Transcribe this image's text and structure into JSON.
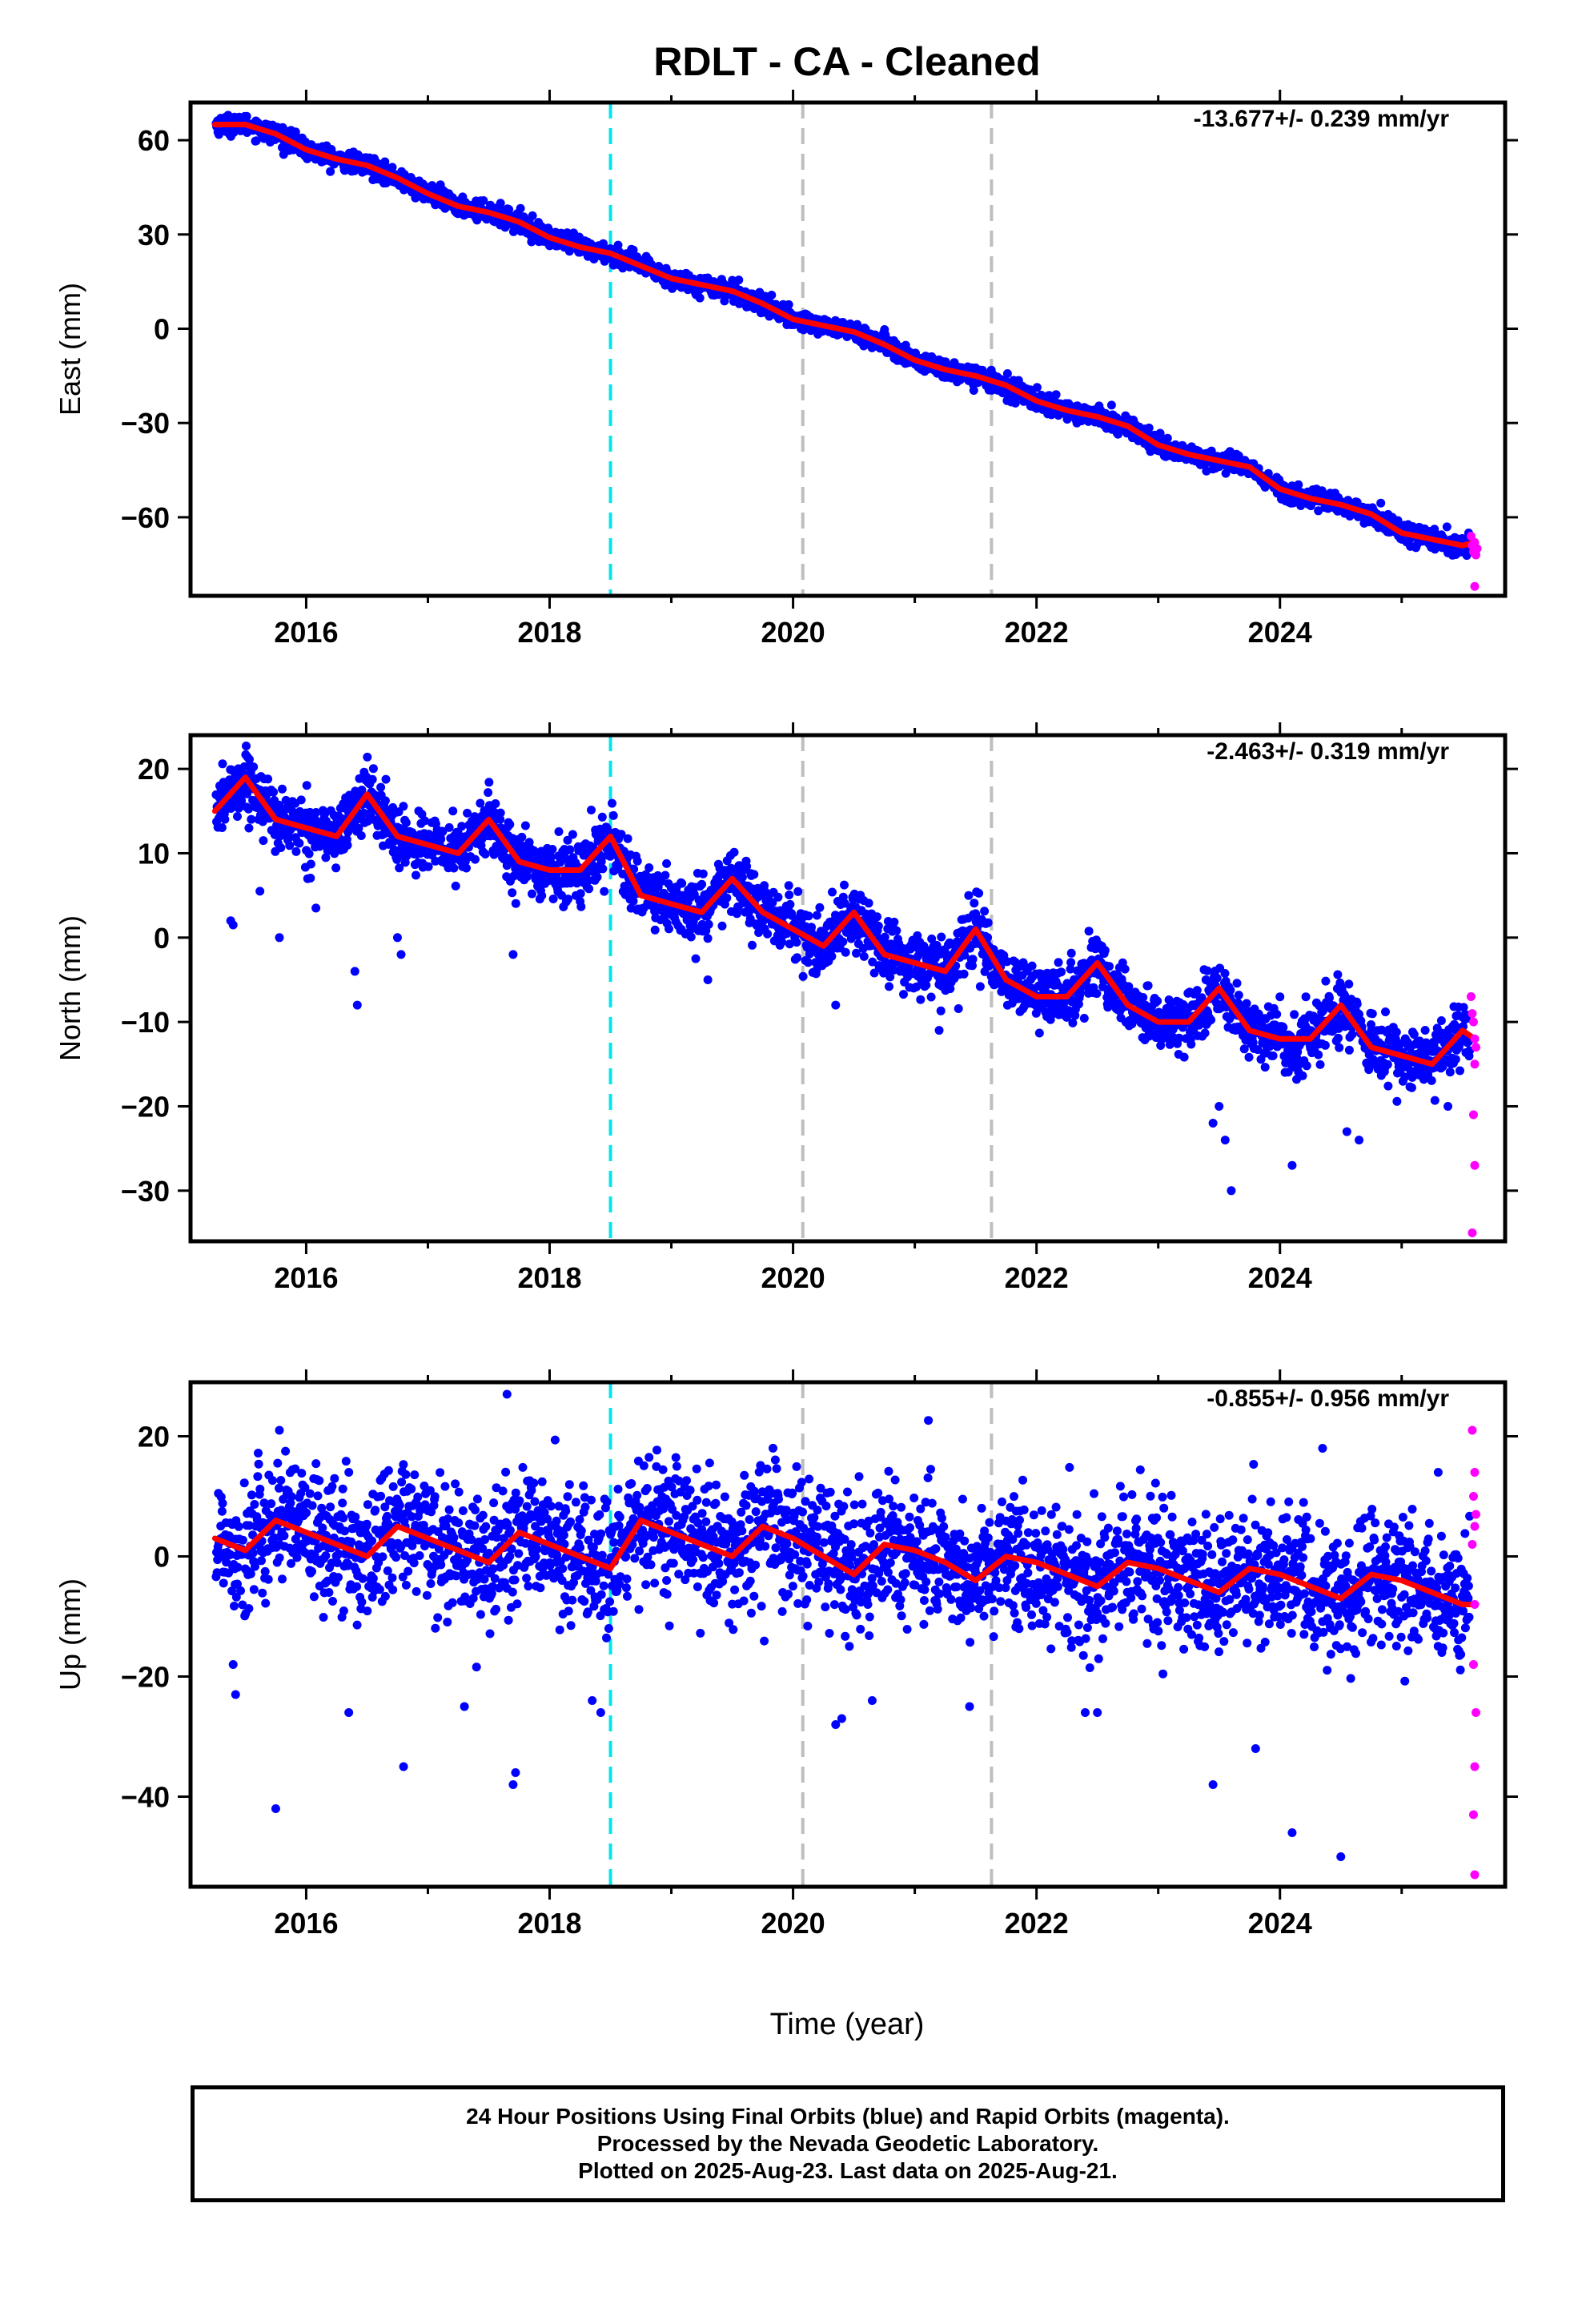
{
  "title": "RDLT  - CA - Cleaned",
  "xlabel": "Time (year)",
  "colors": {
    "final_points": "#0000ff",
    "rapid_points": "#ff00ff",
    "model_line": "#ff0000",
    "antenna_change_line": "#00e5ee",
    "event_line": "#bebebe"
  },
  "chart_data": [
    {
      "type": "scatter",
      "component": "East",
      "ylabel": "East (mm)",
      "rate_label": "-13.677+/- 0.239 mm/yr",
      "xlim": [
        2015.05,
        2025.85
      ],
      "ylim": [
        -85,
        72
      ],
      "yticks": [
        60,
        30,
        0,
        -30,
        -60
      ],
      "xticks": [
        2016,
        2018,
        2020,
        2022,
        2024
      ],
      "vertical_lines": [
        {
          "x": 2018.5,
          "kind": "cyan"
        },
        {
          "x": 2020.08,
          "kind": "gray"
        },
        {
          "x": 2021.63,
          "kind": "gray"
        }
      ],
      "model_line": {
        "x": [
          2015.25,
          2015.5,
          2015.75,
          2016.0,
          2016.25,
          2016.5,
          2016.75,
          2017.0,
          2017.25,
          2017.5,
          2017.75,
          2018.0,
          2018.25,
          2018.5,
          2018.75,
          2019.0,
          2019.25,
          2019.5,
          2019.75,
          2020.0,
          2020.25,
          2020.5,
          2020.75,
          2021.0,
          2021.25,
          2021.5,
          2021.75,
          2022.0,
          2022.25,
          2022.5,
          2022.75,
          2023.0,
          2023.25,
          2023.5,
          2023.75,
          2024.0,
          2024.25,
          2024.5,
          2024.75,
          2025.0,
          2025.25,
          2025.5,
          2025.6
        ],
        "y": [
          65,
          65,
          62,
          57,
          54,
          52,
          48,
          43,
          39,
          37,
          34,
          29,
          26,
          24,
          20,
          16,
          14,
          12,
          8,
          3,
          1,
          -1,
          -5,
          -10,
          -13,
          -15,
          -18,
          -23,
          -26,
          -28,
          -31,
          -37,
          -40,
          -42,
          -44,
          -51,
          -54,
          -56,
          -59,
          -65,
          -67,
          -69,
          -68
        ]
      },
      "rapid_points": {
        "x": [
          2025.57,
          2025.58,
          2025.59,
          2025.6,
          2025.61,
          2025.62,
          2025.6
        ],
        "y": [
          -66,
          -69,
          -71,
          -68,
          -72,
          -70,
          -82
        ]
      },
      "scatter_noise_mm": 1.5,
      "outliers": []
    },
    {
      "type": "scatter",
      "component": "North",
      "ylabel": "North (mm)",
      "rate_label": "-2.463+/- 0.319 mm/yr",
      "xlim": [
        2015.05,
        2025.85
      ],
      "ylim": [
        -36,
        24
      ],
      "yticks": [
        20,
        10,
        0,
        -10,
        -20,
        -30
      ],
      "xticks": [
        2016,
        2018,
        2020,
        2022,
        2024
      ],
      "vertical_lines": [
        {
          "x": 2018.5,
          "kind": "cyan"
        },
        {
          "x": 2020.08,
          "kind": "gray"
        },
        {
          "x": 2021.63,
          "kind": "gray"
        }
      ],
      "model_line": {
        "x": [
          2015.25,
          2015.5,
          2015.75,
          2016.0,
          2016.25,
          2016.5,
          2016.75,
          2017.0,
          2017.25,
          2017.5,
          2017.75,
          2018.0,
          2018.25,
          2018.5,
          2018.75,
          2019.0,
          2019.25,
          2019.5,
          2019.75,
          2020.0,
          2020.25,
          2020.5,
          2020.75,
          2021.0,
          2021.25,
          2021.5,
          2021.75,
          2022.0,
          2022.25,
          2022.5,
          2022.75,
          2023.0,
          2023.25,
          2023.5,
          2023.75,
          2024.0,
          2024.25,
          2024.5,
          2024.75,
          2025.0,
          2025.25,
          2025.5,
          2025.6
        ],
        "y": [
          15,
          19,
          14,
          13,
          12,
          17,
          12,
          11,
          10,
          14,
          9,
          8,
          8,
          12,
          5,
          4,
          3,
          7,
          3,
          1,
          -1,
          3,
          -2,
          -3,
          -4,
          1,
          -5,
          -7,
          -7,
          -3,
          -8,
          -10,
          -10,
          -6,
          -11,
          -12,
          -12,
          -8,
          -13,
          -14,
          -15,
          -11,
          -12
        ]
      },
      "rapid_points": {
        "x": [
          2025.57,
          2025.58,
          2025.59,
          2025.6,
          2025.61,
          2025.6,
          2025.59,
          2025.6,
          2025.58
        ],
        "y": [
          -7,
          -9,
          -10,
          -12,
          -13,
          -15,
          -21,
          -27,
          -35
        ]
      },
      "scatter_noise_mm": 1.8,
      "outliers": [
        {
          "x": 2015.38,
          "y": 2
        },
        {
          "x": 2015.4,
          "y": 1.5
        },
        {
          "x": 2015.62,
          "y": 5.5
        },
        {
          "x": 2015.78,
          "y": 0
        },
        {
          "x": 2016.08,
          "y": 3.5
        },
        {
          "x": 2016.4,
          "y": -4
        },
        {
          "x": 2016.42,
          "y": -8
        },
        {
          "x": 2016.75,
          "y": 0
        },
        {
          "x": 2016.78,
          "y": -2
        },
        {
          "x": 2017.7,
          "y": -2
        },
        {
          "x": 2019.3,
          "y": -5
        },
        {
          "x": 2020.35,
          "y": -8
        },
        {
          "x": 2021.2,
          "y": -11
        },
        {
          "x": 2023.45,
          "y": -22
        },
        {
          "x": 2023.5,
          "y": -20
        },
        {
          "x": 2023.55,
          "y": -24
        },
        {
          "x": 2023.6,
          "y": -30
        },
        {
          "x": 2024.1,
          "y": -27
        },
        {
          "x": 2024.55,
          "y": -23
        },
        {
          "x": 2024.65,
          "y": -24
        },
        {
          "x": 2025.38,
          "y": -20
        }
      ]
    },
    {
      "type": "scatter",
      "component": "Up",
      "ylabel": "Up (mm)",
      "rate_label": "-0.855+/- 0.956 mm/yr",
      "xlim": [
        2015.05,
        2025.85
      ],
      "ylim": [
        -55,
        29
      ],
      "yticks": [
        20,
        0,
        -20,
        -40
      ],
      "xticks": [
        2016,
        2018,
        2020,
        2022,
        2024
      ],
      "vertical_lines": [
        {
          "x": 2018.5,
          "kind": "cyan"
        },
        {
          "x": 2020.08,
          "kind": "gray"
        },
        {
          "x": 2021.63,
          "kind": "gray"
        }
      ],
      "model_line": {
        "x": [
          2015.25,
          2015.5,
          2015.75,
          2016.0,
          2016.25,
          2016.5,
          2016.75,
          2017.0,
          2017.25,
          2017.5,
          2017.75,
          2018.0,
          2018.25,
          2018.5,
          2018.75,
          2019.0,
          2019.25,
          2019.5,
          2019.75,
          2020.0,
          2020.25,
          2020.5,
          2020.75,
          2021.0,
          2021.25,
          2021.5,
          2021.75,
          2022.0,
          2022.25,
          2022.5,
          2022.75,
          2023.0,
          2023.25,
          2023.5,
          2023.75,
          2024.0,
          2024.25,
          2024.5,
          2024.75,
          2025.0,
          2025.25,
          2025.5,
          2025.6
        ],
        "y": [
          3,
          1,
          6,
          4,
          2,
          0,
          5,
          3,
          1,
          -1,
          4,
          2,
          0,
          -2,
          6,
          4,
          2,
          0,
          5,
          3,
          0,
          -3,
          2,
          1,
          -1,
          -4,
          0,
          -1,
          -3,
          -5,
          -1,
          -2,
          -4,
          -6,
          -2,
          -3,
          -5,
          -7,
          -3,
          -4,
          -6,
          -8,
          -8
        ]
      },
      "rapid_points": {
        "x": [
          2025.58,
          2025.6,
          2025.59,
          2025.61,
          2025.6,
          2025.58,
          2025.6,
          2025.59,
          2025.61,
          2025.6,
          2025.59,
          2025.6
        ],
        "y": [
          21,
          14,
          10,
          7,
          5,
          2,
          -8,
          -18,
          -26,
          -35,
          -43,
          -53
        ]
      },
      "scatter_noise_mm": 5.5,
      "outliers": [
        {
          "x": 2015.4,
          "y": -18
        },
        {
          "x": 2015.42,
          "y": -23
        },
        {
          "x": 2015.75,
          "y": -42
        },
        {
          "x": 2015.78,
          "y": 21
        },
        {
          "x": 2016.35,
          "y": -26
        },
        {
          "x": 2016.8,
          "y": -35
        },
        {
          "x": 2017.3,
          "y": -25
        },
        {
          "x": 2017.7,
          "y": -38
        },
        {
          "x": 2017.72,
          "y": -36
        },
        {
          "x": 2017.65,
          "y": 27
        },
        {
          "x": 2018.35,
          "y": -24
        },
        {
          "x": 2018.42,
          "y": -26
        },
        {
          "x": 2020.35,
          "y": -28
        },
        {
          "x": 2020.4,
          "y": -27
        },
        {
          "x": 2020.65,
          "y": -24
        },
        {
          "x": 2021.45,
          "y": -25
        },
        {
          "x": 2022.5,
          "y": -26
        },
        {
          "x": 2022.4,
          "y": -26
        },
        {
          "x": 2023.45,
          "y": -38
        },
        {
          "x": 2023.8,
          "y": -32
        },
        {
          "x": 2024.1,
          "y": -46
        },
        {
          "x": 2024.5,
          "y": -50
        },
        {
          "x": 2024.35,
          "y": 18
        },
        {
          "x": 2025.3,
          "y": 14
        }
      ]
    }
  ],
  "footer": {
    "line1": "24 Hour Positions Using Final Orbits (blue) and Rapid Orbits (magenta).",
    "line2": "Processed by the Nevada Geodetic Laboratory.",
    "line3": "Plotted on 2025-Aug-23. Last data on 2025-Aug-21."
  }
}
